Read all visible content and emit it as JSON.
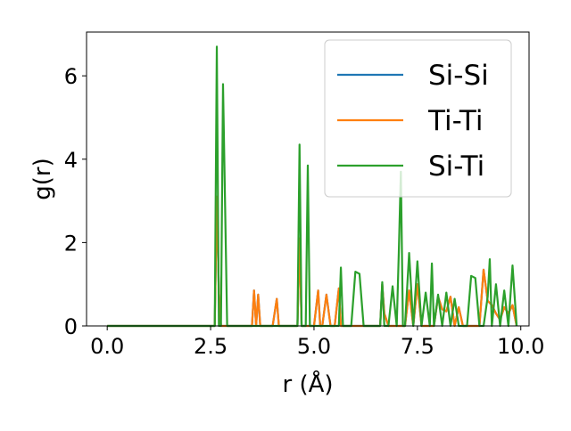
{
  "chart_data": {
    "type": "line",
    "title": "",
    "xlabel": "r (Å)",
    "ylabel": "g(r)",
    "xlim": [
      -0.5,
      10.2
    ],
    "ylim": [
      0,
      7.05
    ],
    "xticks": [
      0.0,
      2.5,
      5.0,
      7.5,
      10.0
    ],
    "xtick_labels": [
      "0.0",
      "2.5",
      "5.0",
      "7.5",
      "10.0"
    ],
    "yticks": [
      0,
      2,
      4,
      6
    ],
    "ytick_labels": [
      "0",
      "2",
      "4",
      "6"
    ],
    "grid": false,
    "legend_position": "top-right",
    "series": [
      {
        "name": "Si-Si",
        "color": "#1f77b4",
        "x": [
          0.0,
          2.5,
          2.6,
          2.65,
          2.7,
          2.75,
          2.8,
          2.9,
          3.5,
          3.55,
          3.6,
          3.65,
          3.7,
          3.75,
          3.8,
          3.9,
          4.0,
          4.1,
          4.15,
          4.2,
          4.3,
          4.5,
          4.6,
          4.65,
          4.7,
          4.75,
          4.8,
          4.9,
          5.0,
          5.1,
          5.15,
          5.2,
          5.3,
          5.4,
          5.45,
          5.5,
          5.6,
          5.65,
          5.7,
          5.8,
          5.9,
          6.0,
          6.1,
          6.2,
          6.6,
          6.65,
          6.7,
          6.8,
          6.9,
          7.0,
          7.1,
          7.15,
          7.2,
          7.3,
          7.4,
          7.5,
          7.6,
          7.7,
          7.8,
          7.9,
          8.0,
          8.1,
          8.2,
          8.3,
          8.4,
          8.5,
          8.6,
          8.7,
          8.8,
          8.9,
          9.0,
          9.1,
          9.2,
          9.3,
          9.4,
          9.5,
          9.6,
          9.7,
          9.8,
          9.9
        ],
        "y": [
          0,
          0,
          0,
          3.1,
          0.8,
          0,
          0,
          0,
          0,
          0.85,
          0,
          0.75,
          0,
          0,
          0,
          0,
          0,
          0.65,
          0,
          0,
          0,
          0,
          0,
          2.1,
          0,
          0,
          0,
          0,
          0,
          0.85,
          0,
          0,
          0.75,
          0,
          0,
          0,
          0.9,
          0,
          0,
          0,
          0,
          0,
          0,
          0,
          0,
          1.0,
          0.3,
          0,
          0,
          0,
          0,
          0,
          0,
          0.85,
          0,
          1.0,
          0,
          0,
          0,
          0,
          0.7,
          0.4,
          0.35,
          0.7,
          0,
          0.45,
          0,
          0,
          0,
          0,
          0,
          1.35,
          0.6,
          0.5,
          0.3,
          0.15,
          0.45,
          0.3,
          0.5,
          0
        ]
      },
      {
        "name": "Ti-Ti",
        "color": "#ff7f0e",
        "x": [
          0.0,
          2.5,
          2.6,
          2.65,
          2.7,
          2.75,
          2.8,
          2.9,
          3.5,
          3.55,
          3.6,
          3.65,
          3.7,
          3.75,
          3.8,
          3.9,
          4.0,
          4.1,
          4.15,
          4.2,
          4.3,
          4.5,
          4.6,
          4.65,
          4.7,
          4.75,
          4.8,
          4.9,
          5.0,
          5.1,
          5.15,
          5.2,
          5.3,
          5.4,
          5.45,
          5.5,
          5.6,
          5.65,
          5.7,
          5.8,
          5.9,
          6.0,
          6.1,
          6.2,
          6.6,
          6.65,
          6.7,
          6.8,
          6.9,
          7.0,
          7.1,
          7.15,
          7.2,
          7.3,
          7.4,
          7.5,
          7.6,
          7.7,
          7.8,
          7.9,
          8.0,
          8.1,
          8.2,
          8.3,
          8.4,
          8.5,
          8.6,
          8.7,
          8.8,
          8.9,
          9.0,
          9.1,
          9.2,
          9.3,
          9.4,
          9.5,
          9.6,
          9.7,
          9.8,
          9.9
        ],
        "y": [
          0,
          0,
          0,
          3.1,
          0.8,
          0,
          0,
          0,
          0,
          0.85,
          0,
          0.75,
          0,
          0,
          0,
          0,
          0,
          0.65,
          0,
          0,
          0,
          0,
          0,
          2.1,
          0,
          0,
          0,
          0,
          0,
          0.85,
          0,
          0,
          0.75,
          0,
          0,
          0,
          0.9,
          0,
          0,
          0,
          0,
          0,
          0,
          0,
          0,
          1.0,
          0.3,
          0,
          0,
          0,
          0,
          0,
          0,
          0.85,
          0,
          1.0,
          0,
          0,
          0,
          0,
          0.7,
          0.4,
          0.35,
          0.7,
          0,
          0.45,
          0,
          0,
          0,
          0,
          0,
          1.35,
          0.6,
          0.5,
          0.3,
          0.15,
          0.45,
          0.3,
          0.5,
          0
        ]
      },
      {
        "name": "Si-Ti",
        "color": "#2ca02c",
        "x": [
          0.0,
          2.5,
          2.6,
          2.65,
          2.7,
          2.75,
          2.8,
          2.9,
          3.5,
          3.6,
          4.5,
          4.6,
          4.65,
          4.7,
          4.75,
          4.8,
          4.85,
          4.9,
          4.95,
          5.0,
          5.5,
          5.6,
          5.65,
          5.7,
          5.8,
          5.9,
          6.0,
          6.1,
          6.2,
          6.5,
          6.6,
          6.65,
          6.7,
          6.8,
          6.9,
          7.0,
          7.05,
          7.1,
          7.15,
          7.2,
          7.3,
          7.4,
          7.5,
          7.6,
          7.7,
          7.8,
          7.85,
          7.9,
          8.0,
          8.1,
          8.2,
          8.3,
          8.4,
          8.5,
          8.6,
          8.7,
          8.8,
          8.9,
          9.0,
          9.1,
          9.2,
          9.25,
          9.3,
          9.4,
          9.5,
          9.6,
          9.7,
          9.8,
          9.9
        ],
        "y": [
          0,
          0,
          0,
          6.7,
          0,
          0,
          5.8,
          0,
          0,
          0,
          0,
          0,
          4.35,
          0,
          0,
          0,
          3.85,
          0,
          0,
          0,
          0,
          0,
          1.4,
          0,
          0,
          0,
          1.3,
          1.25,
          0,
          0,
          0,
          1.05,
          0,
          0,
          0.95,
          0,
          1.75,
          3.7,
          0,
          0,
          1.75,
          0,
          1.55,
          0,
          0.8,
          0,
          1.5,
          0,
          0.75,
          0,
          0.8,
          0,
          0.65,
          0,
          0,
          0,
          1.2,
          1.15,
          0,
          0,
          0.7,
          1.6,
          0,
          1.0,
          0,
          0.85,
          0,
          1.45,
          0
        ]
      }
    ]
  }
}
